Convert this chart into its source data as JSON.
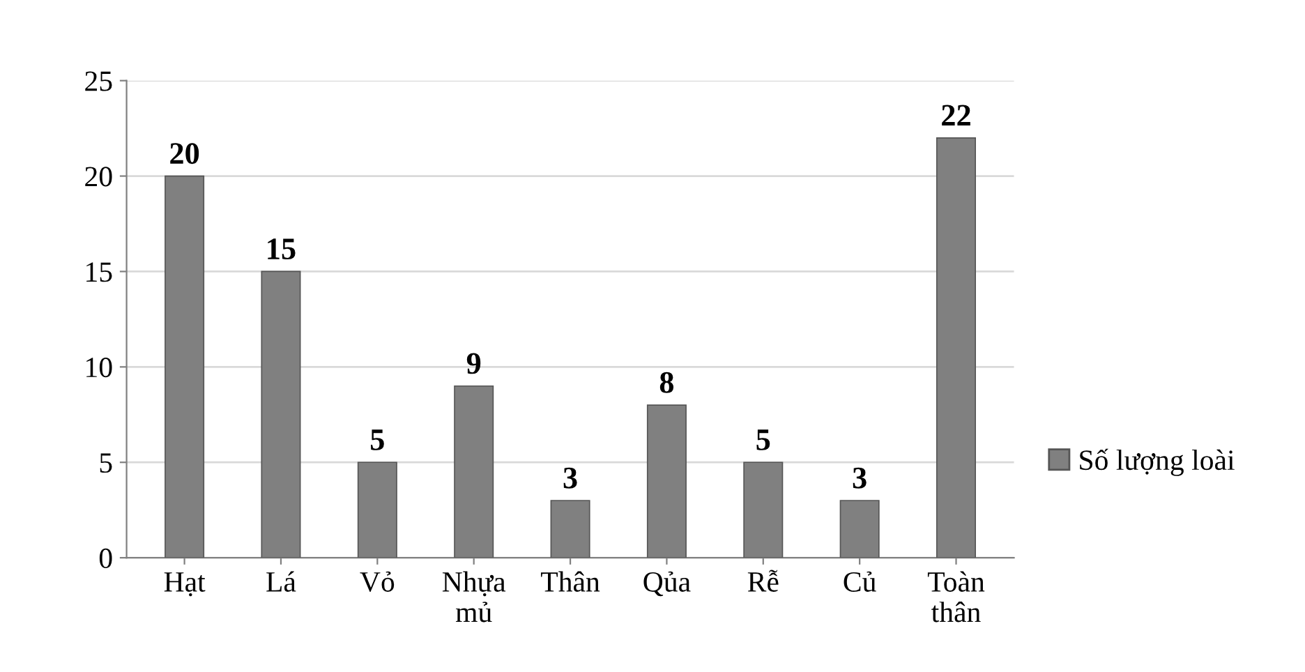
{
  "chart_data": {
    "type": "bar",
    "categories": [
      "Hạt",
      "Lá",
      "Vỏ",
      "Nhựa mủ",
      "Thân",
      "Qủa",
      "Rễ",
      "Củ",
      "Toàn thân"
    ],
    "series": [
      {
        "name": "Số lượng loài",
        "color": "#808080",
        "values": [
          20,
          15,
          5,
          9,
          3,
          8,
          5,
          3,
          22
        ]
      }
    ],
    "ylim": [
      0,
      25
    ],
    "yticks": [
      0,
      5,
      10,
      15,
      20,
      25
    ],
    "grid": "y",
    "legend": "right",
    "data_labels": true
  }
}
